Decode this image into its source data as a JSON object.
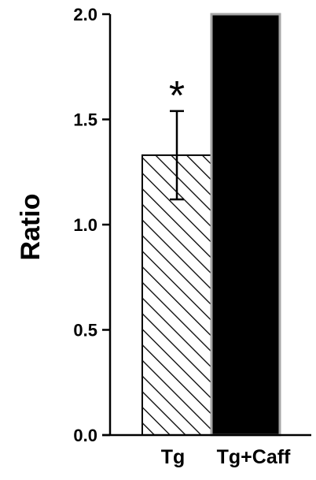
{
  "chart_data": {
    "type": "bar",
    "title": "",
    "xlabel": "",
    "ylabel": "Ratio",
    "ylim": [
      0,
      2.0
    ],
    "yticks": [
      0.0,
      0.5,
      1.0,
      1.5,
      2.0
    ],
    "ytick_labels": [
      "0.0",
      "0.5",
      "1.0",
      "1.5",
      "2.0"
    ],
    "categories": [
      "Tg",
      "Tg+Caff"
    ],
    "values": [
      1.33,
      2.0
    ],
    "errors": [
      0.21,
      null
    ],
    "significance": [
      "*",
      ""
    ],
    "bar_styles": [
      "hatched",
      "solid"
    ],
    "colors": {
      "axis": "#000000",
      "hatch": "#000000",
      "bar2_fill": "#000000",
      "bar2_edge": "#a6a6a6"
    },
    "grid": false,
    "legend": "none"
  }
}
